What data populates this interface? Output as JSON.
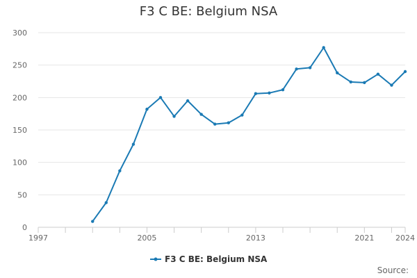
{
  "chart_data": {
    "type": "line",
    "title": "F3 C BE: Belgium NSA",
    "xlabel": "",
    "ylabel": "",
    "xlim": [
      1997,
      2024
    ],
    "ylim": [
      0,
      300
    ],
    "y_ticks": [
      0,
      50,
      100,
      150,
      200,
      250,
      300
    ],
    "x_tick_labels": [
      "1997",
      "2005",
      "2013",
      "2021",
      "2024"
    ],
    "x_tick_values": [
      1997,
      2005,
      2013,
      2021,
      2024
    ],
    "x_minor_ticks": [
      1997,
      1999,
      2001,
      2003,
      2005,
      2007,
      2009,
      2011,
      2013,
      2015,
      2017,
      2019,
      2021,
      2023,
      2024
    ],
    "grid": true,
    "legend_position": "bottom",
    "series": [
      {
        "name": "F3 C BE: Belgium NSA",
        "color": "#1a7ab4",
        "x": [
          2001,
          2002,
          2003,
          2004,
          2005,
          2006,
          2007,
          2008,
          2009,
          2010,
          2011,
          2012,
          2013,
          2014,
          2015,
          2016,
          2017,
          2018,
          2019,
          2020,
          2021,
          2022,
          2023,
          2024
        ],
        "y": [
          9,
          38,
          87,
          128,
          182,
          200,
          171,
          195,
          174,
          159,
          161,
          173,
          206,
          207,
          212,
          244,
          246,
          277,
          238,
          224,
          223,
          236,
          219,
          240
        ]
      }
    ]
  },
  "source_label": "Source:"
}
